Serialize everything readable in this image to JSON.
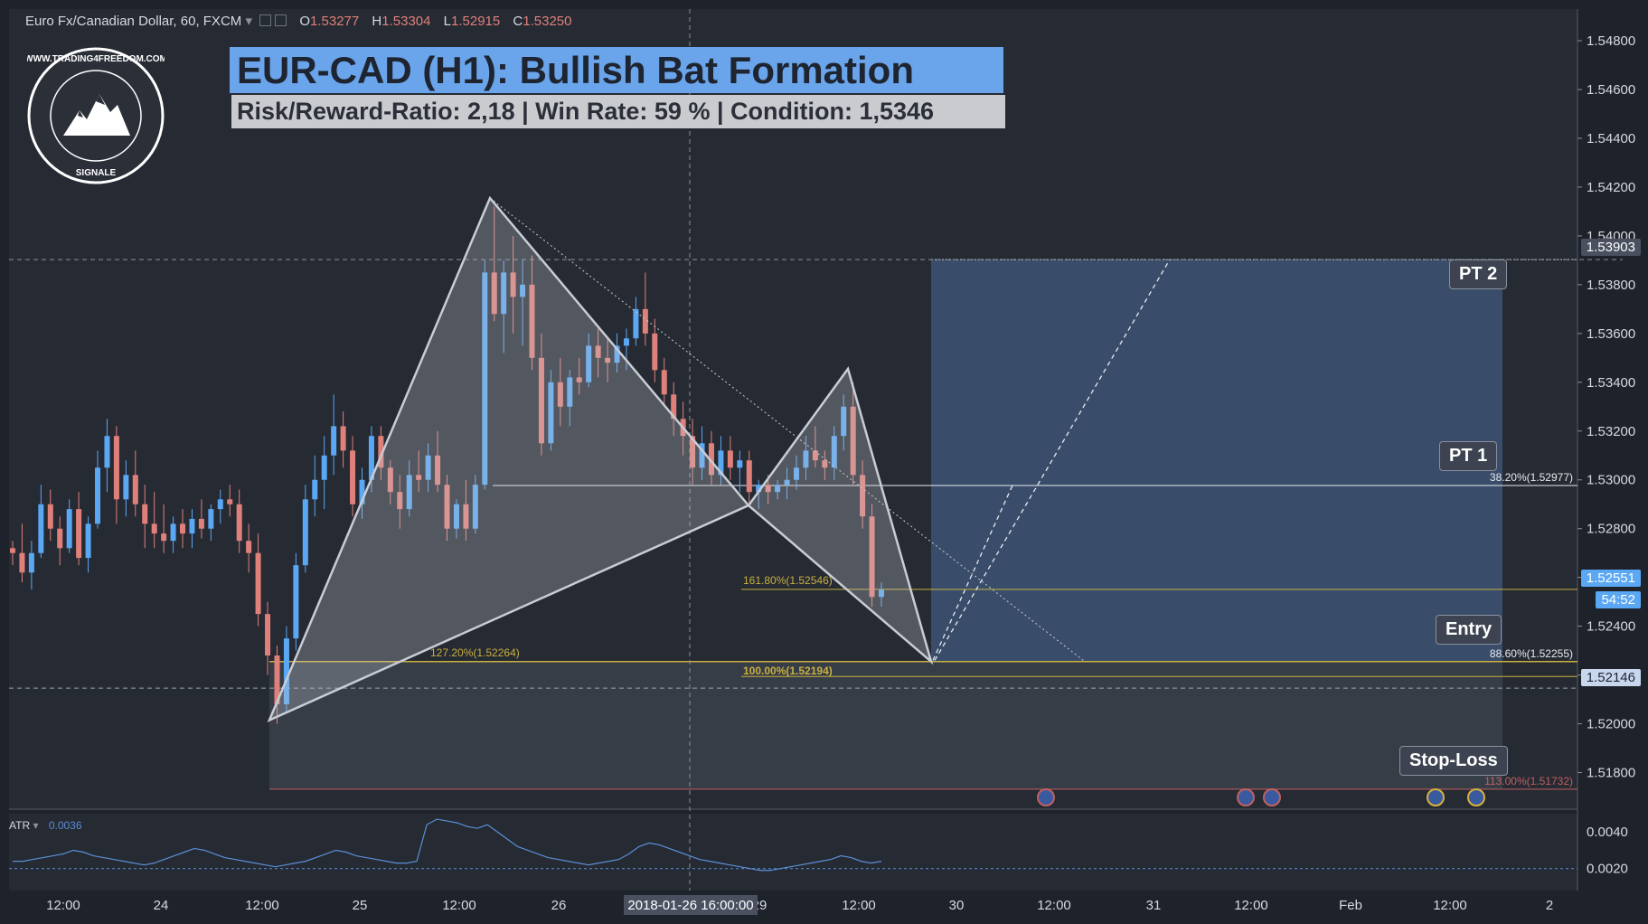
{
  "header": {
    "symbol": "Euro Fx/Canadian Dollar, 60, FXCM",
    "open_label": "O",
    "open": "1.53277",
    "high_label": "H",
    "high": "1.53304",
    "low_label": "L",
    "low": "1.52915",
    "close_label": "C",
    "close": "1.53250"
  },
  "title": "EUR-CAD (H1): Bullish Bat Formation",
  "subtitle": "Risk/Reward-Ratio: 2,18 | Win Rate: 59 % | Condition: 1,5346",
  "logo": {
    "text": "WWW.TRADING4FREEDOM.COM",
    "sub": "SIGNALE"
  },
  "levels": {
    "pt2": "PT 2",
    "pt1": "PT 1",
    "entry": "Entry",
    "stop": "Stop-Loss"
  },
  "fib_labels": {
    "f382": "38.20%(1.52977)",
    "f886": "88.60%(1.52255)",
    "f1618": "161.80%(1.52546)",
    "f1272": "127.20%(1.52264)",
    "f100": "100.00%(1.52194)",
    "f113": "113.00%(1.51732)"
  },
  "price_tags": {
    "crosshair": "1.53903",
    "current": "1.52551",
    "countdown": "54:52",
    "hline": "1.52146"
  },
  "atr": {
    "label": "ATR",
    "value": "0.0036"
  },
  "crosshair_time": "2018-01-26 16:00:00",
  "colors": {
    "background": "#1e222b",
    "up": "#5aa7f3",
    "down": "#e0807a",
    "pattern": "#c8ccd4",
    "fib": "#c8b040",
    "target_zone": "#40597d",
    "stop_zone": "#3a3f49"
  },
  "chart_data": {
    "type": "candlestick",
    "y_axis": {
      "ticks": [
        "1.54800",
        "1.54600",
        "1.54400",
        "1.54200",
        "1.54000",
        "1.53800",
        "1.53600",
        "1.53400",
        "1.53200",
        "1.53000",
        "1.52800",
        "1.52600",
        "1.52400",
        "1.52200",
        "1.52000",
        "1.51800"
      ],
      "range": [
        1.5165,
        1.5493
      ]
    },
    "x_axis": {
      "ticks": [
        "12:00",
        "24",
        "12:00",
        "25",
        "12:00",
        "26",
        "12:00",
        "29",
        "12:00",
        "30",
        "12:00",
        "31",
        "12:00",
        "Feb",
        "12:00",
        "2"
      ]
    },
    "candles": [
      [
        1.5272,
        1.5275,
        1.5265,
        1.527
      ],
      [
        1.527,
        1.5282,
        1.5258,
        1.5262
      ],
      [
        1.5262,
        1.5275,
        1.5255,
        1.527
      ],
      [
        1.527,
        1.5298,
        1.5268,
        1.529
      ],
      [
        1.529,
        1.5296,
        1.5275,
        1.528
      ],
      [
        1.528,
        1.5285,
        1.5265,
        1.5272
      ],
      [
        1.5272,
        1.5292,
        1.527,
        1.5288
      ],
      [
        1.5288,
        1.5295,
        1.5265,
        1.5268
      ],
      [
        1.5268,
        1.5285,
        1.5262,
        1.5282
      ],
      [
        1.5282,
        1.5312,
        1.528,
        1.5305
      ],
      [
        1.5305,
        1.5325,
        1.5295,
        1.5318
      ],
      [
        1.5318,
        1.5322,
        1.5282,
        1.5292
      ],
      [
        1.5292,
        1.5308,
        1.5285,
        1.5302
      ],
      [
        1.5302,
        1.5312,
        1.5285,
        1.529
      ],
      [
        1.529,
        1.5298,
        1.5272,
        1.5282
      ],
      [
        1.5282,
        1.5295,
        1.5272,
        1.5278
      ],
      [
        1.5278,
        1.529,
        1.527,
        1.5275
      ],
      [
        1.5275,
        1.5285,
        1.527,
        1.5282
      ],
      [
        1.5282,
        1.5288,
        1.5272,
        1.5278
      ],
      [
        1.5278,
        1.5288,
        1.5272,
        1.5284
      ],
      [
        1.5284,
        1.5292,
        1.5276,
        1.528
      ],
      [
        1.528,
        1.529,
        1.5275,
        1.5288
      ],
      [
        1.5288,
        1.5296,
        1.5282,
        1.5292
      ],
      [
        1.5292,
        1.5298,
        1.5285,
        1.529
      ],
      [
        1.529,
        1.5296,
        1.527,
        1.5275
      ],
      [
        1.5275,
        1.5282,
        1.5262,
        1.527
      ],
      [
        1.527,
        1.5278,
        1.524,
        1.5245
      ],
      [
        1.5245,
        1.525,
        1.522,
        1.5228
      ],
      [
        1.5228,
        1.5232,
        1.52,
        1.5208
      ],
      [
        1.5208,
        1.524,
        1.5205,
        1.5235
      ],
      [
        1.5235,
        1.527,
        1.523,
        1.5265
      ],
      [
        1.5265,
        1.5298,
        1.5262,
        1.5292
      ],
      [
        1.5292,
        1.531,
        1.5285,
        1.53
      ],
      [
        1.53,
        1.5318,
        1.5288,
        1.531
      ],
      [
        1.531,
        1.5335,
        1.5302,
        1.5322
      ],
      [
        1.5322,
        1.5328,
        1.5305,
        1.5312
      ],
      [
        1.5312,
        1.5318,
        1.5285,
        1.529
      ],
      [
        1.529,
        1.5305,
        1.5284,
        1.53
      ],
      [
        1.53,
        1.5322,
        1.5295,
        1.5318
      ],
      [
        1.5318,
        1.5322,
        1.53,
        1.5305
      ],
      [
        1.5305,
        1.5308,
        1.529,
        1.5295
      ],
      [
        1.5295,
        1.5302,
        1.528,
        1.5288
      ],
      [
        1.5288,
        1.5308,
        1.5285,
        1.5302
      ],
      [
        1.5302,
        1.5312,
        1.5295,
        1.53
      ],
      [
        1.53,
        1.5315,
        1.5295,
        1.531
      ],
      [
        1.531,
        1.532,
        1.5295,
        1.5298
      ],
      [
        1.5298,
        1.5302,
        1.5275,
        1.528
      ],
      [
        1.528,
        1.5292,
        1.5276,
        1.529
      ],
      [
        1.529,
        1.53,
        1.5275,
        1.528
      ],
      [
        1.528,
        1.5302,
        1.5278,
        1.5298
      ],
      [
        1.5298,
        1.539,
        1.5296,
        1.5385
      ],
      [
        1.5385,
        1.5412,
        1.5365,
        1.5368
      ],
      [
        1.5368,
        1.539,
        1.5352,
        1.5385
      ],
      [
        1.5385,
        1.54,
        1.536,
        1.5375
      ],
      [
        1.5375,
        1.539,
        1.5355,
        1.538
      ],
      [
        1.538,
        1.5392,
        1.5345,
        1.535
      ],
      [
        1.535,
        1.536,
        1.531,
        1.5315
      ],
      [
        1.5315,
        1.5345,
        1.5312,
        1.534
      ],
      [
        1.534,
        1.535,
        1.5322,
        1.533
      ],
      [
        1.533,
        1.5345,
        1.5322,
        1.5342
      ],
      [
        1.5342,
        1.535,
        1.5335,
        1.534
      ],
      [
        1.534,
        1.536,
        1.5338,
        1.5355
      ],
      [
        1.5355,
        1.5362,
        1.5342,
        1.535
      ],
      [
        1.535,
        1.5358,
        1.534,
        1.5348
      ],
      [
        1.5348,
        1.536,
        1.5344,
        1.5355
      ],
      [
        1.5355,
        1.5362,
        1.5345,
        1.5358
      ],
      [
        1.5358,
        1.5375,
        1.5355,
        1.537
      ],
      [
        1.537,
        1.5385,
        1.5355,
        1.536
      ],
      [
        1.536,
        1.5366,
        1.534,
        1.5345
      ],
      [
        1.5345,
        1.535,
        1.533,
        1.5335
      ],
      [
        1.5335,
        1.534,
        1.5318,
        1.5325
      ],
      [
        1.5325,
        1.5332,
        1.531,
        1.5318
      ],
      [
        1.5318,
        1.5325,
        1.5298,
        1.5305
      ],
      [
        1.5305,
        1.5322,
        1.53,
        1.5315
      ],
      [
        1.5315,
        1.532,
        1.5298,
        1.5302
      ],
      [
        1.5302,
        1.5318,
        1.5298,
        1.5312
      ],
      [
        1.5312,
        1.5318,
        1.53,
        1.5305
      ],
      [
        1.5305,
        1.5312,
        1.5295,
        1.5308
      ],
      [
        1.5308,
        1.5312,
        1.529,
        1.5295
      ],
      [
        1.5295,
        1.53,
        1.5288,
        1.5298
      ],
      [
        1.5298,
        1.5302,
        1.529,
        1.5295
      ],
      [
        1.5295,
        1.53,
        1.5292,
        1.5298
      ],
      [
        1.5298,
        1.5305,
        1.5292,
        1.53
      ],
      [
        1.53,
        1.531,
        1.5296,
        1.5305
      ],
      [
        1.5305,
        1.5318,
        1.53,
        1.5312
      ],
      [
        1.5312,
        1.5322,
        1.5305,
        1.5308
      ],
      [
        1.5308,
        1.5312,
        1.53,
        1.5305
      ],
      [
        1.5305,
        1.5322,
        1.53,
        1.5318
      ],
      [
        1.5318,
        1.5335,
        1.5312,
        1.533
      ],
      [
        1.533,
        1.534,
        1.5298,
        1.5302
      ],
      [
        1.5302,
        1.5308,
        1.528,
        1.5285
      ],
      [
        1.5285,
        1.529,
        1.5248,
        1.5252
      ],
      [
        1.5252,
        1.5258,
        1.5248,
        1.5255
      ]
    ],
    "atr_series": [
      0.0024,
      0.0024,
      0.0025,
      0.0026,
      0.0027,
      0.0028,
      0.003,
      0.0029,
      0.0027,
      0.0026,
      0.0025,
      0.0024,
      0.0023,
      0.0022,
      0.0023,
      0.0025,
      0.0027,
      0.0029,
      0.0031,
      0.003,
      0.0028,
      0.0026,
      0.0025,
      0.0024,
      0.0023,
      0.0022,
      0.0021,
      0.0022,
      0.0023,
      0.0024,
      0.0026,
      0.0028,
      0.003,
      0.0029,
      0.0027,
      0.0026,
      0.0025,
      0.0024,
      0.0023,
      0.0023,
      0.0024,
      0.0044,
      0.0047,
      0.0046,
      0.0045,
      0.0043,
      0.0042,
      0.0044,
      0.004,
      0.0036,
      0.0032,
      0.003,
      0.0028,
      0.0026,
      0.0025,
      0.0024,
      0.0023,
      0.0022,
      0.0023,
      0.0024,
      0.0025,
      0.0028,
      0.0032,
      0.0034,
      0.0033,
      0.0031,
      0.0029,
      0.0027,
      0.0025,
      0.0024,
      0.0023,
      0.0022,
      0.0021,
      0.002,
      0.0019,
      0.0019,
      0.002,
      0.0021,
      0.0022,
      0.0023,
      0.0024,
      0.0025,
      0.0027,
      0.0026,
      0.0024,
      0.0023,
      0.0024
    ],
    "atr_axis": {
      "ticks": [
        "0.0040",
        "0.0020"
      ],
      "range": [
        0.0008,
        0.005
      ]
    }
  }
}
